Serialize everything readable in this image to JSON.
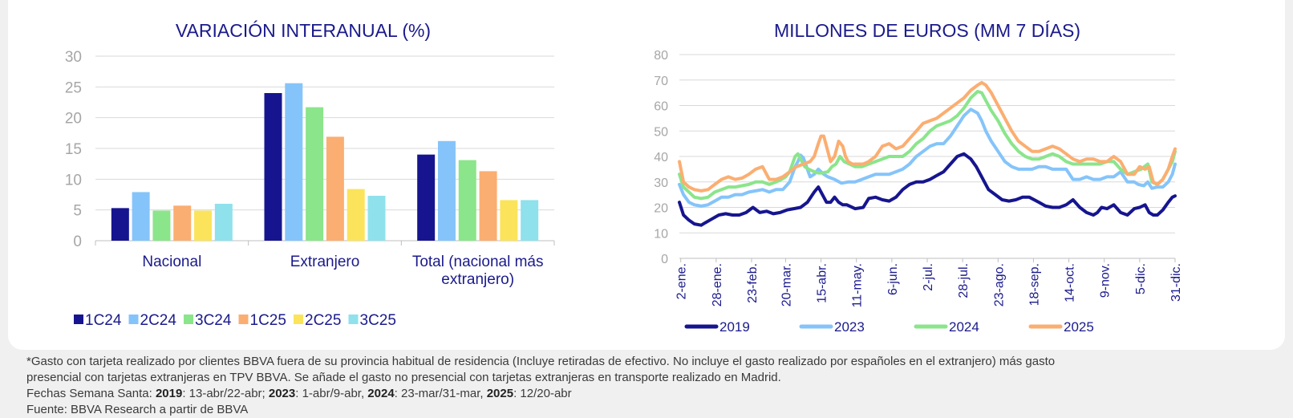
{
  "chart_data": [
    {
      "type": "bar",
      "title": "VARIACIÓN INTERANUAL (%)",
      "categories": [
        "Nacional",
        "Extranjero",
        "Total (nacional más extranjero)"
      ],
      "category_lines": [
        [
          "Nacional"
        ],
        [
          "Extranjero"
        ],
        [
          "Total (nacional más",
          "extranjero)"
        ]
      ],
      "ylim": [
        0,
        30
      ],
      "yticks": [
        0,
        5,
        10,
        15,
        20,
        25,
        30
      ],
      "grid": true,
      "legend_position": "bottom",
      "series": [
        {
          "name": "1C24",
          "color": "#16158f",
          "values": [
            5.3,
            24.0,
            14.0
          ]
        },
        {
          "name": "2C24",
          "color": "#85c4fa",
          "values": [
            7.9,
            25.6,
            16.2
          ]
        },
        {
          "name": "3C24",
          "color": "#8be58b",
          "values": [
            4.9,
            21.7,
            13.1
          ]
        },
        {
          "name": "1C25",
          "color": "#fbae71",
          "values": [
            5.7,
            16.9,
            11.3
          ]
        },
        {
          "name": "2C25",
          "color": "#fbe45c",
          "values": [
            4.9,
            8.4,
            6.6
          ]
        },
        {
          "name": "3C25",
          "color": "#8fe1ec",
          "values": [
            6.0,
            7.3,
            6.6
          ]
        }
      ]
    },
    {
      "type": "line",
      "title": "MILLONES DE EUROS (MM 7 DÍAS)",
      "ylim": [
        0,
        80
      ],
      "yticks": [
        0,
        10,
        20,
        30,
        40,
        50,
        60,
        70,
        80
      ],
      "xlim": [
        1,
        365
      ],
      "x_unit": "day of year",
      "xtick_labels": [
        "2-ene.",
        "28-ene.",
        "23-feb.",
        "20-mar.",
        "15-abr.",
        "11-may.",
        "6-jun.",
        "2-jul.",
        "28-jul.",
        "23-ago.",
        "18-sep.",
        "14-oct.",
        "9-nov.",
        "5-dic.",
        "31-dic."
      ],
      "xtick_days": [
        2,
        28,
        54,
        79,
        105,
        131,
        157,
        183,
        209,
        235,
        261,
        287,
        313,
        339,
        365
      ],
      "grid": true,
      "legend_position": "bottom",
      "series": [
        {
          "name": "2019",
          "color": "#16158f",
          "x": [
            1,
            4,
            8,
            12,
            17,
            20,
            25,
            30,
            35,
            40,
            45,
            50,
            55,
            60,
            65,
            70,
            75,
            80,
            85,
            90,
            95,
            100,
            103,
            106,
            109,
            112,
            115,
            118,
            121,
            124,
            130,
            136,
            140,
            145,
            150,
            155,
            160,
            165,
            170,
            175,
            180,
            185,
            190,
            195,
            200,
            205,
            210,
            215,
            219,
            222,
            225,
            228,
            233,
            238,
            243,
            248,
            253,
            258,
            265,
            270,
            275,
            280,
            285,
            290,
            295,
            300,
            305,
            308,
            311,
            315,
            320,
            325,
            330,
            335,
            339,
            343,
            346,
            349,
            352,
            356,
            360,
            363,
            365
          ],
          "y": [
            22,
            17,
            15,
            13.5,
            13,
            14,
            15.5,
            17,
            17.5,
            17,
            17,
            18,
            20,
            18,
            18.5,
            17.5,
            18,
            19,
            19.5,
            20,
            22,
            26,
            28,
            25,
            22,
            22,
            24,
            22,
            21,
            21,
            19.5,
            20,
            23.5,
            24,
            23,
            22.5,
            24,
            27,
            29,
            30,
            30,
            31,
            32.5,
            34,
            37,
            40,
            41,
            39,
            36,
            33,
            30,
            27,
            25,
            23,
            22.5,
            23,
            24,
            24,
            22,
            20.5,
            20,
            20,
            21,
            23,
            20,
            18,
            17,
            18,
            20,
            19.5,
            21,
            18,
            17,
            19.5,
            20,
            21,
            18,
            17,
            17,
            19,
            22,
            24,
            24.5
          ]
        },
        {
          "name": "2023",
          "color": "#85c4fa",
          "x": [
            1,
            4,
            8,
            12,
            17,
            22,
            27,
            32,
            37,
            42,
            47,
            52,
            57,
            62,
            67,
            72,
            77,
            82,
            86,
            88,
            90,
            92,
            95,
            97,
            100,
            103,
            107,
            110,
            115,
            120,
            125,
            130,
            135,
            140,
            145,
            150,
            155,
            160,
            165,
            170,
            175,
            180,
            185,
            190,
            195,
            200,
            205,
            210,
            215,
            220,
            223,
            226,
            230,
            235,
            240,
            245,
            250,
            255,
            260,
            265,
            270,
            275,
            280,
            285,
            290,
            295,
            300,
            305,
            310,
            315,
            320,
            325,
            330,
            335,
            338,
            342,
            345,
            348,
            352,
            356,
            360,
            363,
            365
          ],
          "y": [
            29,
            25,
            22,
            21,
            20.5,
            21,
            22.5,
            24,
            24,
            25,
            25,
            26,
            26.5,
            27,
            26,
            27,
            27,
            30,
            36,
            38,
            40.5,
            39.5,
            35,
            32,
            33,
            35,
            33,
            32,
            31,
            29.5,
            30,
            30,
            31,
            32,
            33,
            33,
            33,
            34,
            35,
            37,
            40,
            42,
            44,
            45,
            45,
            48,
            52,
            56,
            58.5,
            57,
            54,
            50,
            46,
            42,
            38,
            36,
            35,
            35,
            35,
            36,
            36,
            35,
            35,
            35,
            31,
            31,
            32,
            31,
            31,
            32,
            32,
            34,
            30,
            30,
            29,
            28.5,
            30,
            27.5,
            28,
            28,
            30,
            33,
            37
          ]
        },
        {
          "name": "2024",
          "color": "#8be58b",
          "x": [
            1,
            4,
            8,
            12,
            17,
            22,
            27,
            32,
            37,
            42,
            47,
            52,
            57,
            62,
            67,
            72,
            76,
            79,
            82,
            84,
            86,
            88,
            90,
            93,
            96,
            100,
            103,
            106,
            110,
            113,
            116,
            119,
            122,
            126,
            130,
            135,
            140,
            145,
            150,
            155,
            160,
            165,
            170,
            175,
            180,
            185,
            190,
            195,
            200,
            205,
            210,
            215,
            220,
            223,
            226,
            230,
            235,
            240,
            245,
            250,
            255,
            260,
            265,
            270,
            275,
            280,
            285,
            290,
            295,
            300,
            305,
            310,
            315,
            320,
            325,
            330,
            335,
            340,
            345,
            348,
            352,
            356,
            360,
            363,
            365
          ],
          "y": [
            33,
            28,
            26,
            24,
            23.5,
            24,
            26,
            27,
            28,
            28,
            28.5,
            29,
            30,
            30,
            29,
            30,
            31,
            32,
            34,
            37,
            40,
            41,
            39,
            36,
            35,
            34,
            33.5,
            33.5,
            34,
            36,
            37,
            40,
            38,
            37,
            36,
            36,
            37,
            38,
            39,
            40,
            40,
            40,
            42,
            45,
            47,
            50,
            52,
            53,
            54,
            56,
            59,
            63,
            65.5,
            65,
            62,
            58,
            54,
            49,
            45,
            42,
            40,
            39,
            39,
            40,
            41,
            40,
            38,
            37,
            37,
            37,
            37,
            37,
            38,
            38,
            35,
            33,
            34,
            35,
            37,
            30,
            29,
            31,
            35,
            38,
            42
          ]
        },
        {
          "name": "2025",
          "color": "#fbae71",
          "x": [
            1,
            4,
            8,
            12,
            17,
            22,
            27,
            32,
            37,
            42,
            47,
            52,
            57,
            62,
            67,
            72,
            77,
            82,
            87,
            92,
            97,
            100,
            103,
            105,
            107,
            109,
            112,
            115,
            118,
            121,
            123,
            125,
            128,
            132,
            136,
            140,
            145,
            150,
            155,
            160,
            165,
            170,
            175,
            180,
            185,
            190,
            195,
            200,
            205,
            210,
            215,
            220,
            223,
            226,
            230,
            235,
            240,
            245,
            250,
            255,
            260,
            265,
            270,
            275,
            280,
            285,
            290,
            295,
            300,
            305,
            310,
            315,
            320,
            325,
            330,
            335,
            339,
            343,
            346,
            349,
            352,
            356,
            360,
            363,
            365
          ],
          "y": [
            38,
            30,
            28,
            27,
            26.5,
            27,
            29,
            31,
            32,
            31,
            31.5,
            33,
            35,
            36,
            31,
            31,
            32,
            34,
            36,
            37,
            38,
            40,
            45,
            48,
            48,
            44,
            38,
            40,
            46,
            44,
            40,
            38,
            37,
            37,
            37,
            38,
            40,
            44,
            45,
            43,
            44,
            47,
            50,
            53,
            54,
            55,
            57,
            59,
            61,
            63,
            66,
            68,
            69,
            68,
            65,
            60,
            55,
            50,
            46,
            44,
            42,
            42,
            43,
            44,
            43,
            41,
            39,
            38,
            39,
            39,
            38,
            38,
            40,
            38,
            33,
            33,
            36,
            35,
            36,
            30,
            29,
            31,
            35,
            40,
            43
          ]
        }
      ]
    }
  ],
  "footnotes": {
    "line1": "*Gasto con tarjeta realizado por clientes BBVA fuera de su provincia habitual de residencia (Incluye retiradas de efectivo. No incluye el gasto realizado por españoles en el extranjero) más gasto",
    "line2": "presencial con tarjetas extranjeras en TPV BBVA. Se añade el gasto no presencial con tarjetas extranjeras en transporte realizado en Madrid.",
    "fechas_label": "Fechas Semana Santa: ",
    "y2019": "2019",
    "d2019": ": 13-abr/22-abr; ",
    "y2023": "2023",
    "d2023": ": 1-abr/9-abr, ",
    "y2024": "2024",
    "d2024": ": 23-mar/31-mar, ",
    "y2025": "2025",
    "d2025": ": 12/20-abr",
    "source": "Fuente: BBVA Research a partir de BBVA"
  }
}
